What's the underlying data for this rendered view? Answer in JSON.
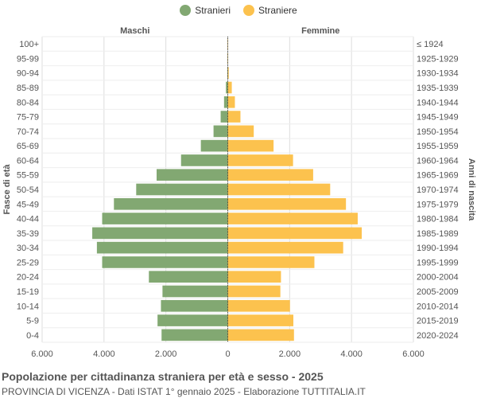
{
  "legend": {
    "stranieri": "Stranieri",
    "straniere": "Straniere"
  },
  "colors": {
    "male": "#82a872",
    "female": "#fcc24e",
    "grid": "#dddddd",
    "axis": "#999999",
    "text": "#555555"
  },
  "title": "Popolazione per cittadinanza straniera per età e sesso - 2025",
  "subtitle": "PROVINCIA DI VICENZA - Dati ISTAT 1° gennaio 2025 - Elaborazione TUTTITALIA.IT",
  "chart_data": {
    "type": "bar",
    "orientation": "horizontal-pyramid",
    "left_header": "Maschi",
    "right_header": "Femmine",
    "ylabel_left": "Fasce di età",
    "ylabel_right": "Anni di nascita",
    "categories": [
      "100+",
      "95-99",
      "90-94",
      "85-89",
      "80-84",
      "75-79",
      "70-74",
      "65-69",
      "60-64",
      "55-59",
      "50-54",
      "45-49",
      "40-44",
      "35-39",
      "30-34",
      "25-29",
      "20-24",
      "15-19",
      "10-14",
      "5-9",
      "0-4"
    ],
    "birth_years": [
      "≤ 1924",
      "1925-1929",
      "1930-1934",
      "1935-1939",
      "1940-1944",
      "1945-1949",
      "1950-1954",
      "1955-1959",
      "1960-1964",
      "1965-1969",
      "1970-1974",
      "1975-1979",
      "1980-1984",
      "1985-1989",
      "1990-1994",
      "1995-1999",
      "2000-2004",
      "2005-2009",
      "2010-2014",
      "2015-2019",
      "2020-2024"
    ],
    "series": [
      {
        "name": "Stranieri",
        "values": [
          2,
          5,
          15,
          60,
          120,
          230,
          460,
          870,
          1510,
          2300,
          2960,
          3680,
          4060,
          4380,
          4230,
          4060,
          2550,
          2110,
          2160,
          2270,
          2140
        ]
      },
      {
        "name": "Straniere",
        "values": [
          3,
          10,
          30,
          130,
          230,
          410,
          840,
          1480,
          2110,
          2760,
          3310,
          3820,
          4200,
          4330,
          3730,
          2800,
          1720,
          1700,
          2010,
          2120,
          2140
        ]
      }
    ],
    "xlim": [
      -6000,
      6000
    ],
    "xticks": [
      -6000,
      -4000,
      -2000,
      0,
      2000,
      4000,
      6000
    ],
    "xtick_labels": [
      "6.000",
      "4.000",
      "2.000",
      "0",
      "2.000",
      "4.000",
      "6.000"
    ],
    "grid": true,
    "legend_position": "top-center"
  }
}
